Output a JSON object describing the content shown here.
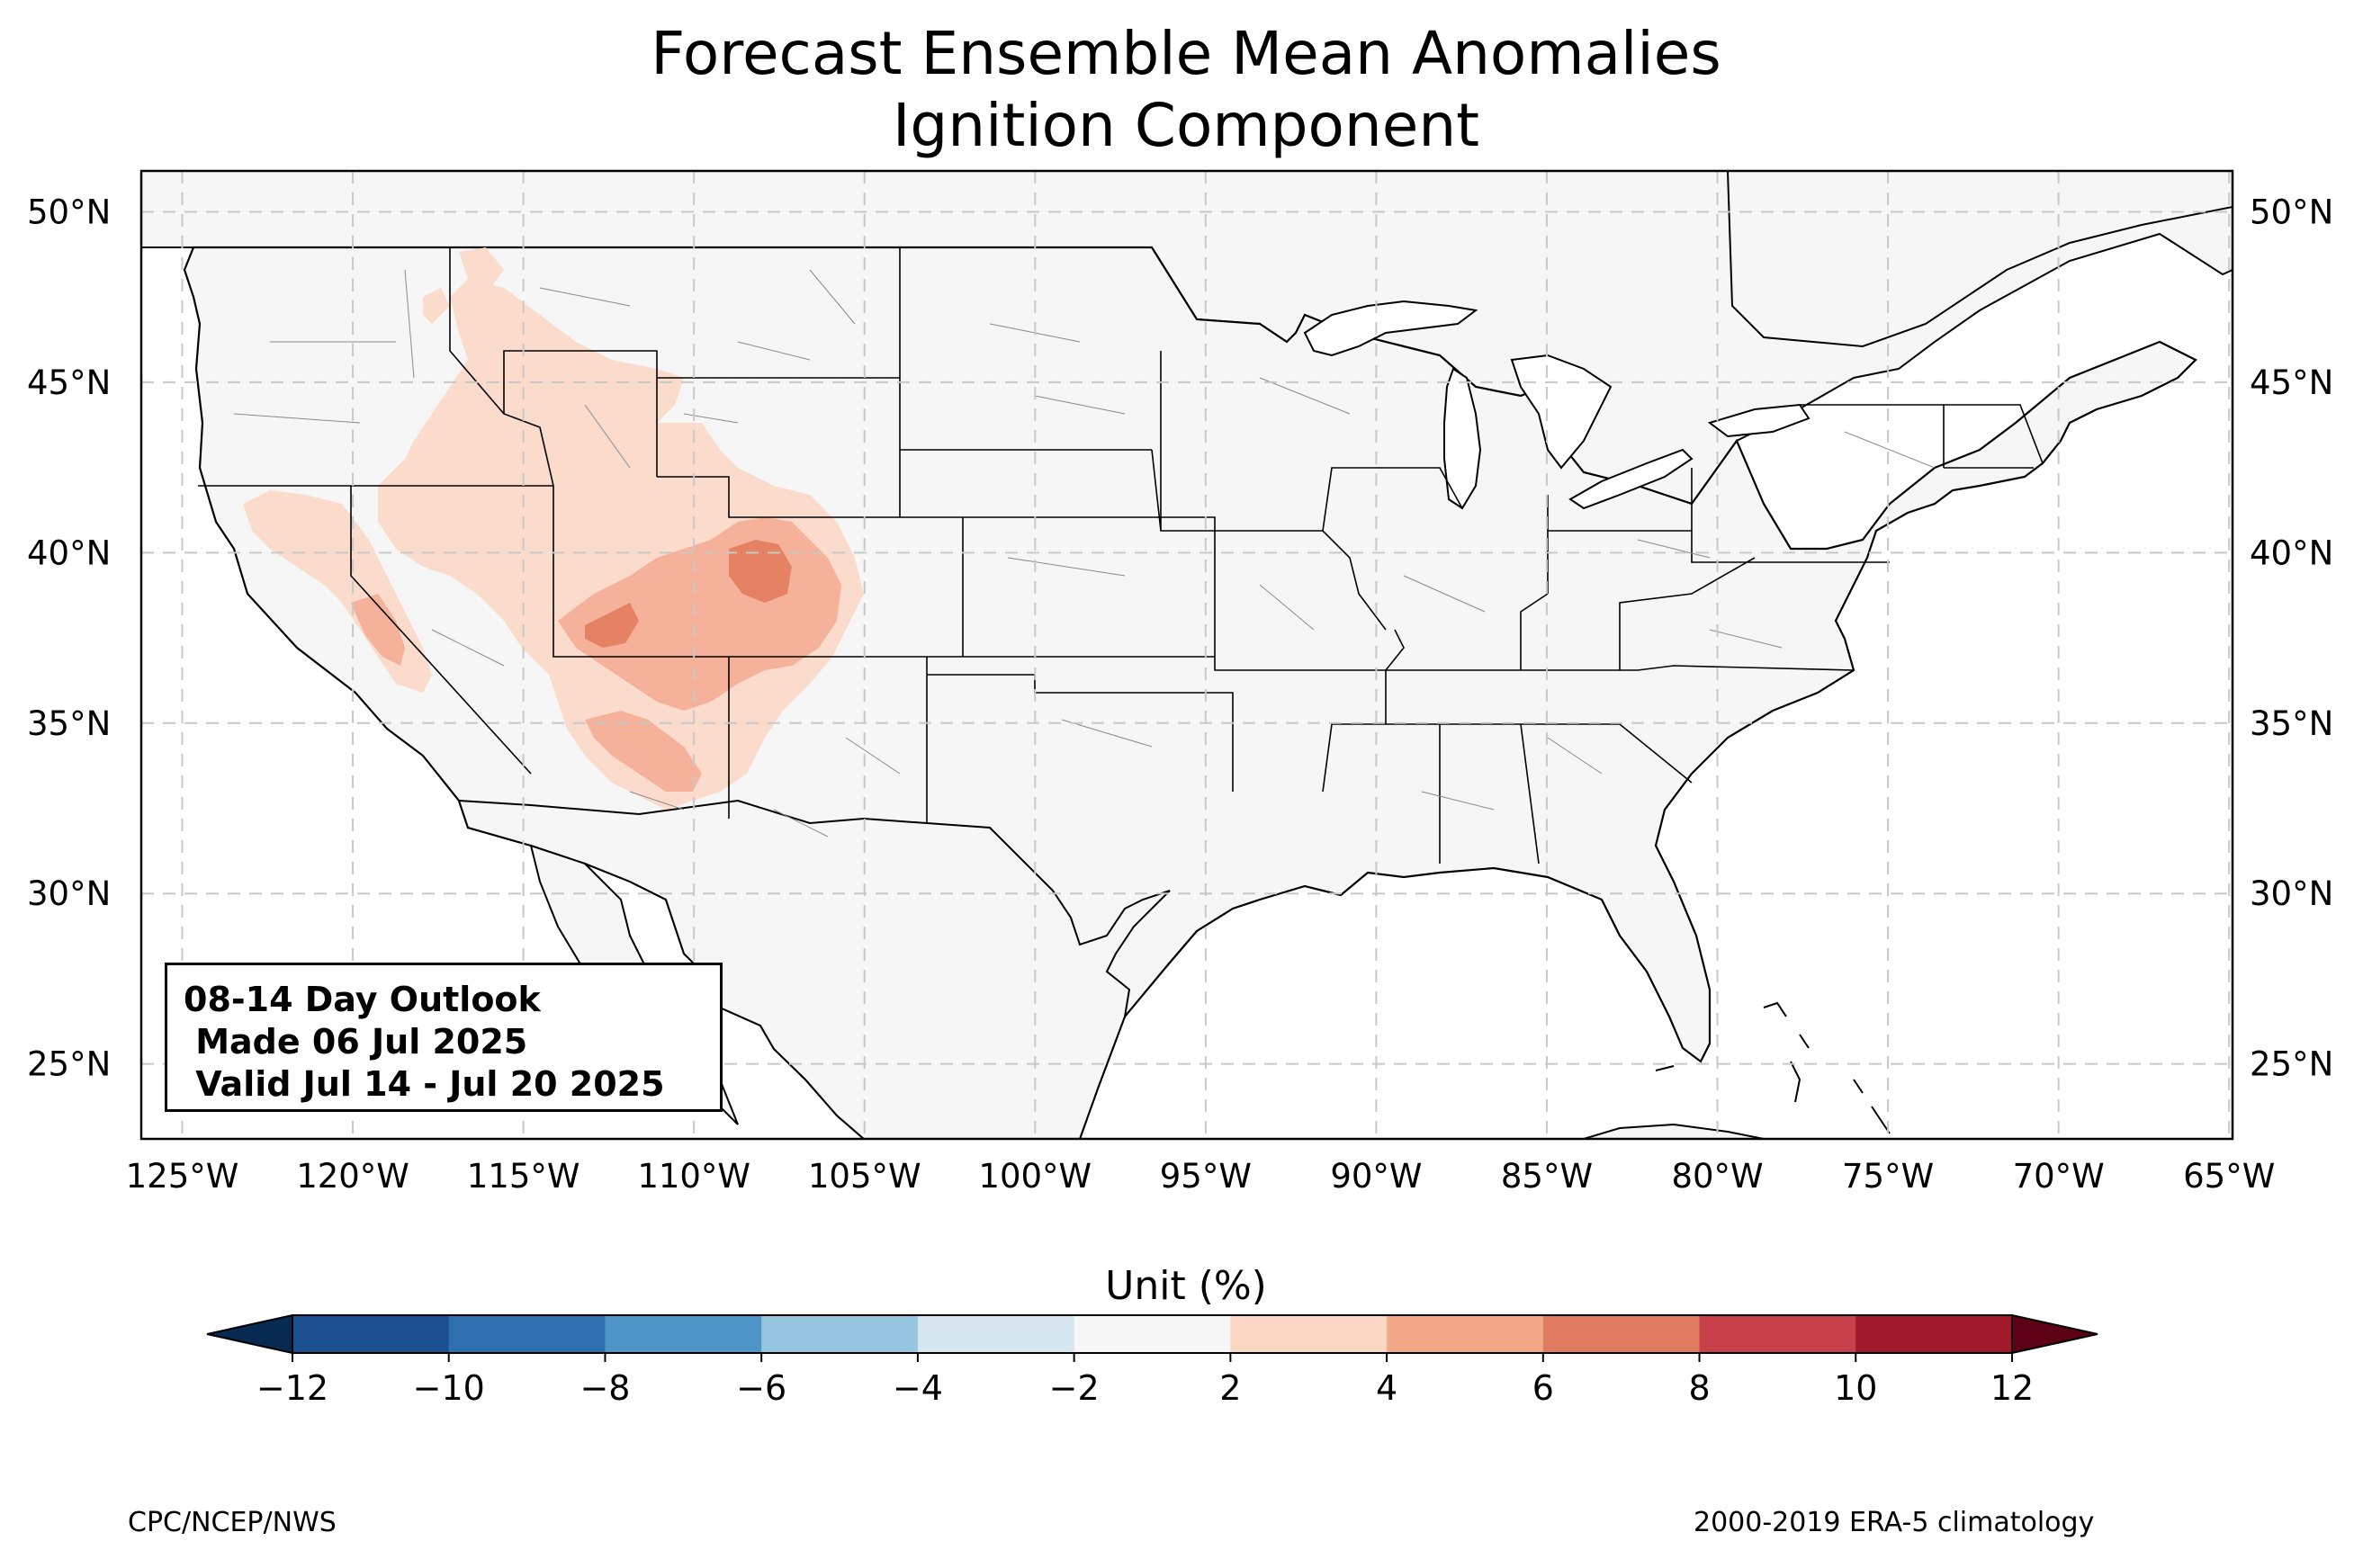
{
  "title": {
    "line1": "Forecast Ensemble Mean Anomalies",
    "line2": "Ignition Component"
  },
  "info_box": {
    "line1": "08-14 Day Outlook",
    "line2": " Made 06 Jul 2025",
    "line3": " Valid Jul 14 - Jul 20 2025"
  },
  "axes": {
    "lon_labels": [
      "125°W",
      "120°W",
      "115°W",
      "110°W",
      "105°W",
      "100°W",
      "95°W",
      "90°W",
      "85°W",
      "80°W",
      "75°W",
      "70°W",
      "65°W"
    ],
    "lon_values": [
      -125,
      -120,
      -115,
      -110,
      -105,
      -100,
      -95,
      -90,
      -85,
      -80,
      -75,
      -70,
      -65
    ],
    "lat_labels": [
      "50°N",
      "45°N",
      "40°N",
      "35°N",
      "30°N",
      "25°N"
    ],
    "lat_values": [
      50,
      45,
      40,
      35,
      30,
      25
    ],
    "lon_range": [
      -126.2,
      -64.9
    ],
    "lat_range": [
      22.8,
      51.2
    ],
    "grid": "dashed"
  },
  "colorbar": {
    "label": "Unit (%)",
    "ticks": [
      "−12",
      "−10",
      "−8",
      "−6",
      "−4",
      "−2",
      "2",
      "4",
      "6",
      "8",
      "10",
      "12"
    ],
    "tick_values": [
      -12,
      -10,
      -8,
      -6,
      -4,
      -2,
      2,
      4,
      6,
      8,
      10,
      12
    ],
    "colors": [
      "#1b4f8f",
      "#2e6fb0",
      "#4c95c6",
      "#96c6e0",
      "#d6e6f0",
      "#f7f7f7",
      "#fbd7c3",
      "#f3a88a",
      "#e07b62",
      "#c8404a",
      "#a11a2c"
    ],
    "under_color": "#072a52",
    "over_color": "#5d0015",
    "extend": "both"
  },
  "map_colors": {
    "land": "#f5f6f5",
    "ocean": "#ffffff",
    "level1": "#fbdccc",
    "level2": "#f5b19a",
    "level3": "#e58264"
  },
  "footer": {
    "left": "CPC/NCEP/NWS",
    "right": "2000-2019 ERA-5 climatology"
  }
}
